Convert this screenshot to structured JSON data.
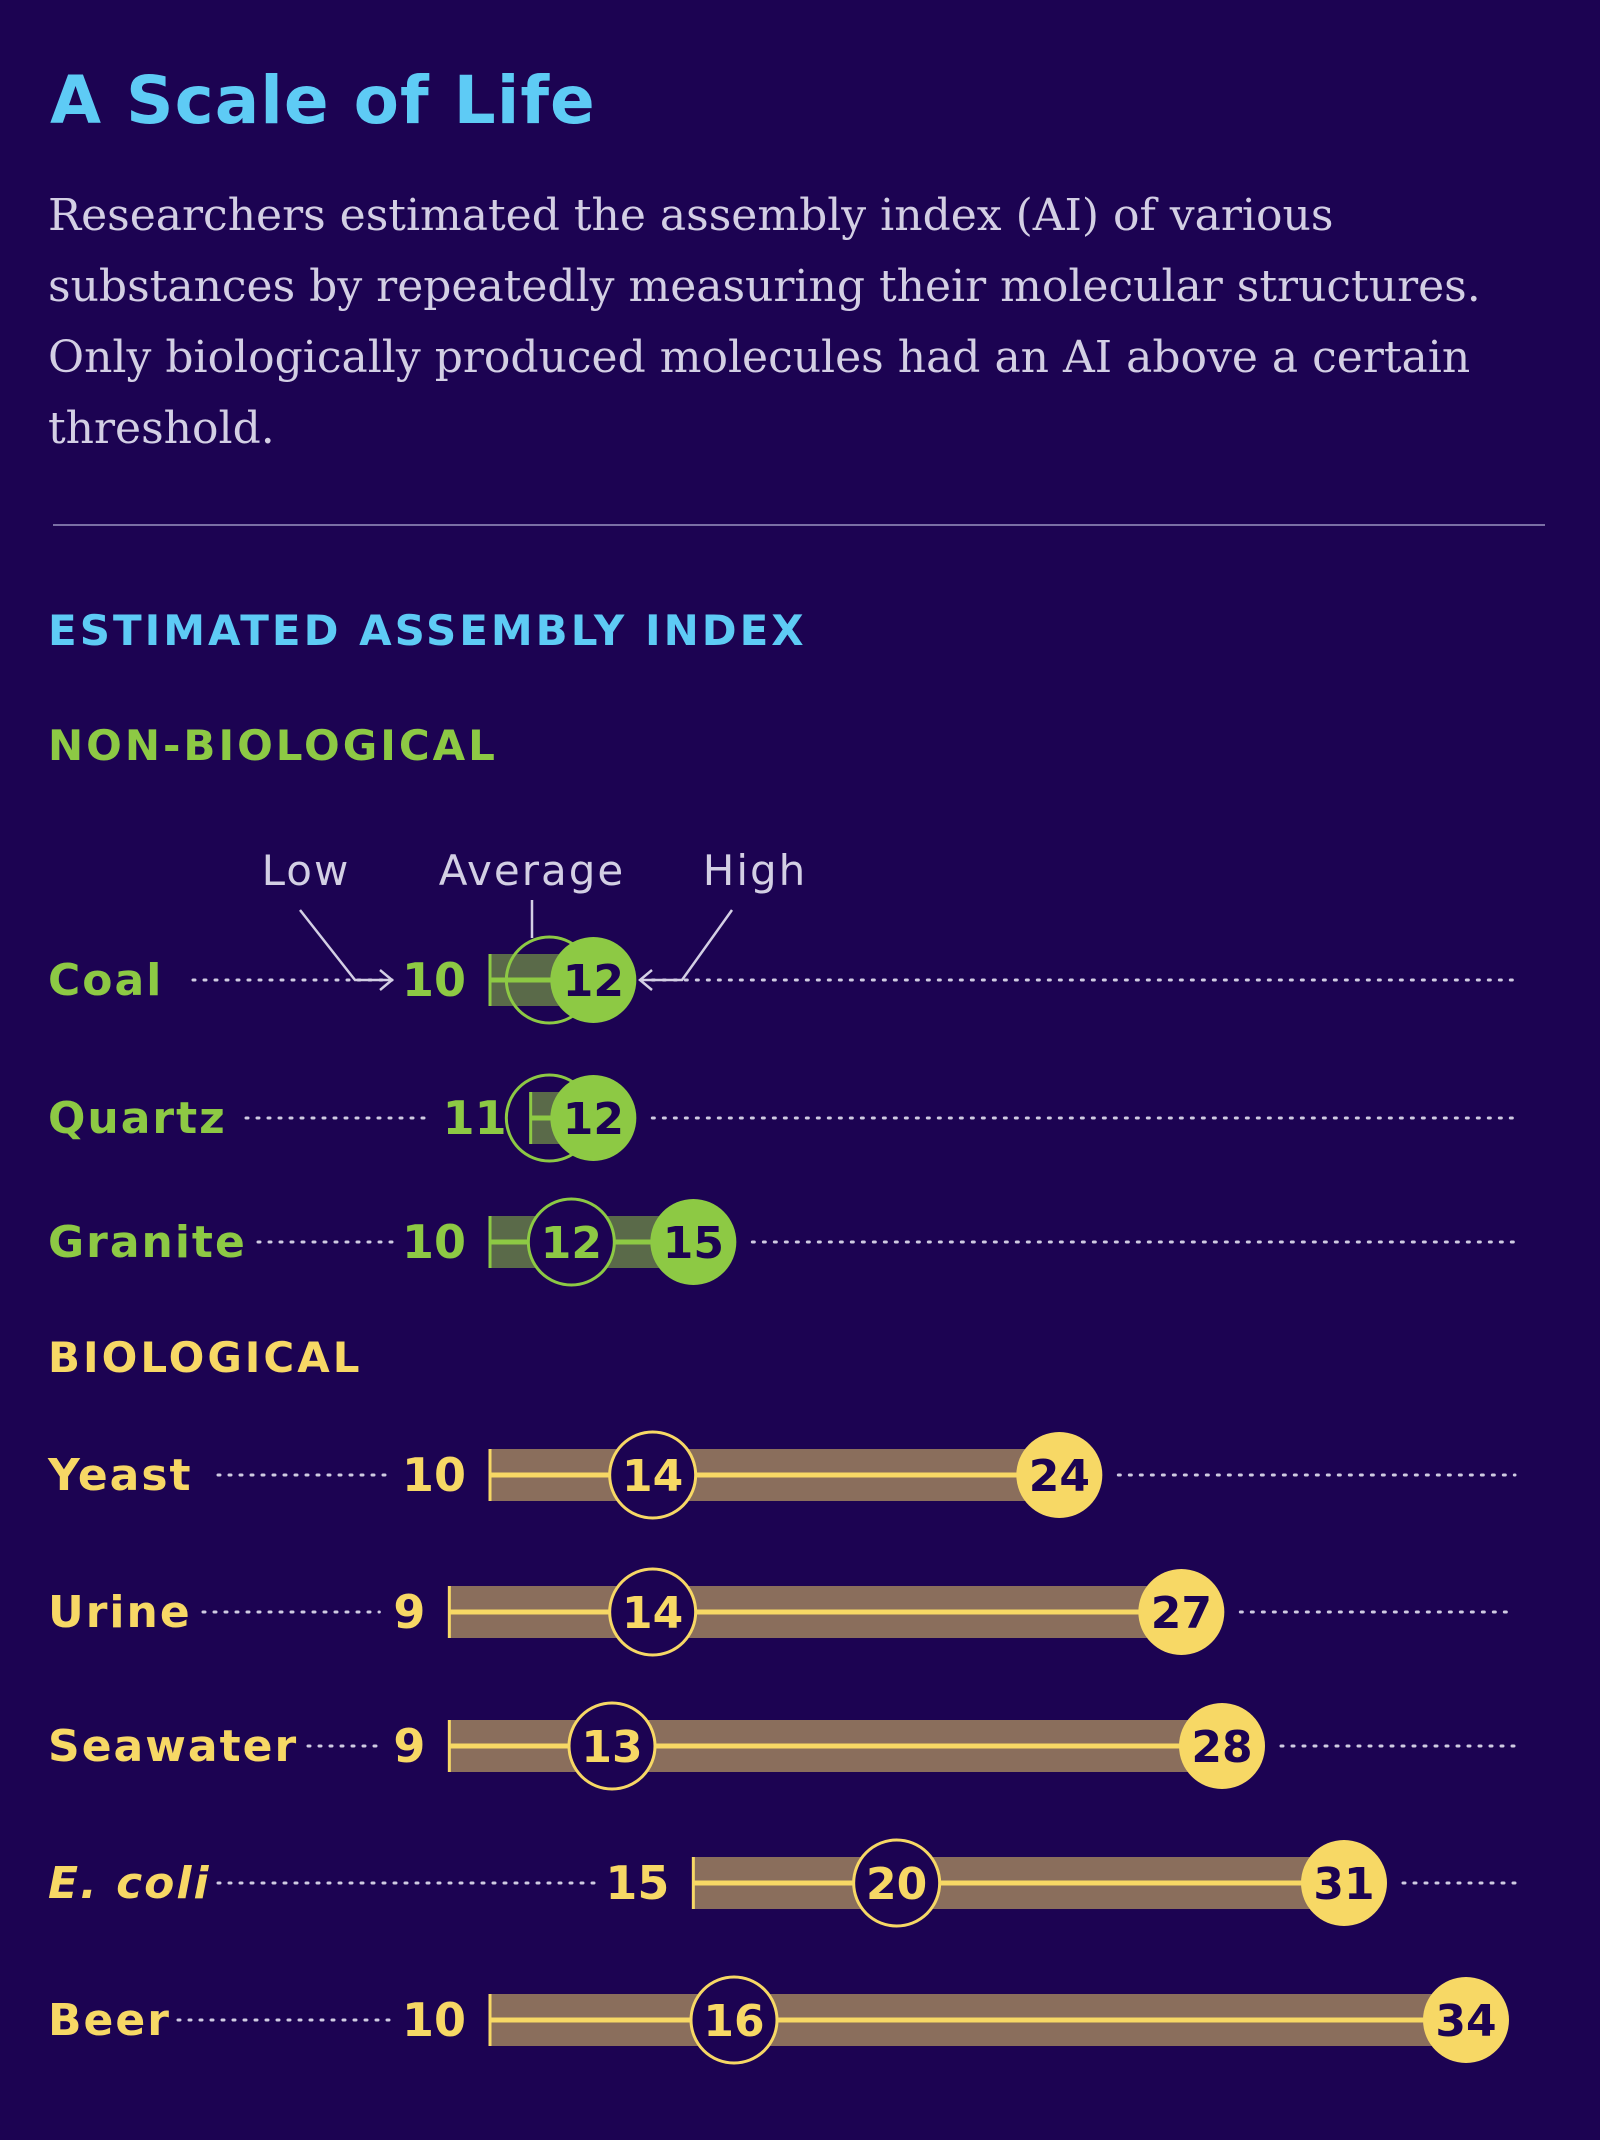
{
  "title": "A Scale of Life",
  "description": "Researchers estimated the assembly index (AI) of various substances by repeatedly measuring their molecular structures. Only biologically produced molecules had an AI above a certain threshold.",
  "colors": {
    "background": "#1c0352",
    "title": "#5ecbf5",
    "non_biological": "#8dc944",
    "biological": "#f7d865",
    "bio_bar": "#8a6e5c",
    "nonbio_bar": "#5a6a49",
    "dotted": "#cfcbe2"
  },
  "chart_data": {
    "type": "range-dot",
    "title": "ESTIMATED ASSEMBLY INDEX",
    "legend": {
      "low": "Low",
      "average": "Average",
      "high": "High"
    },
    "groups": [
      {
        "name": "NON-BIOLOGICAL",
        "kind": "non_biological",
        "items": [
          {
            "label": "Coal",
            "italic": false,
            "low": 10,
            "average": 12,
            "high": 12
          },
          {
            "label": "Quartz",
            "italic": false,
            "low": 11,
            "average": 12,
            "high": 12
          },
          {
            "label": "Granite",
            "italic": false,
            "low": 10,
            "average": 12,
            "high": 15
          }
        ]
      },
      {
        "name": "BIOLOGICAL",
        "kind": "biological",
        "items": [
          {
            "label": "Yeast",
            "italic": false,
            "low": 10,
            "average": 14,
            "high": 24
          },
          {
            "label": "Urine",
            "italic": false,
            "low": 9,
            "average": 14,
            "high": 27
          },
          {
            "label": "Seawater",
            "italic": false,
            "low": 9,
            "average": 13,
            "high": 28
          },
          {
            "label": "E. coli",
            "italic": true,
            "low": 15,
            "average": 20,
            "high": 31
          },
          {
            "label": "Beer",
            "italic": false,
            "low": 10,
            "average": 16,
            "high": 34
          }
        ]
      }
    ]
  }
}
